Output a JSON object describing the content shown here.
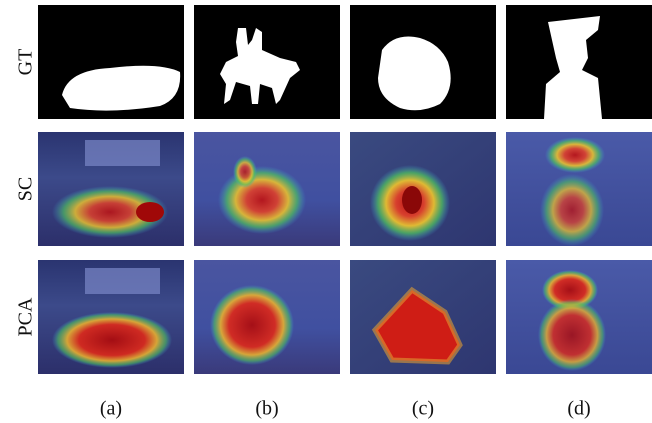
{
  "rows": [
    {
      "label": "GT"
    },
    {
      "label": "SC"
    },
    {
      "label": "PCA"
    }
  ],
  "columns": [
    "(a)",
    "(b)",
    "(c)",
    "(d)"
  ]
}
